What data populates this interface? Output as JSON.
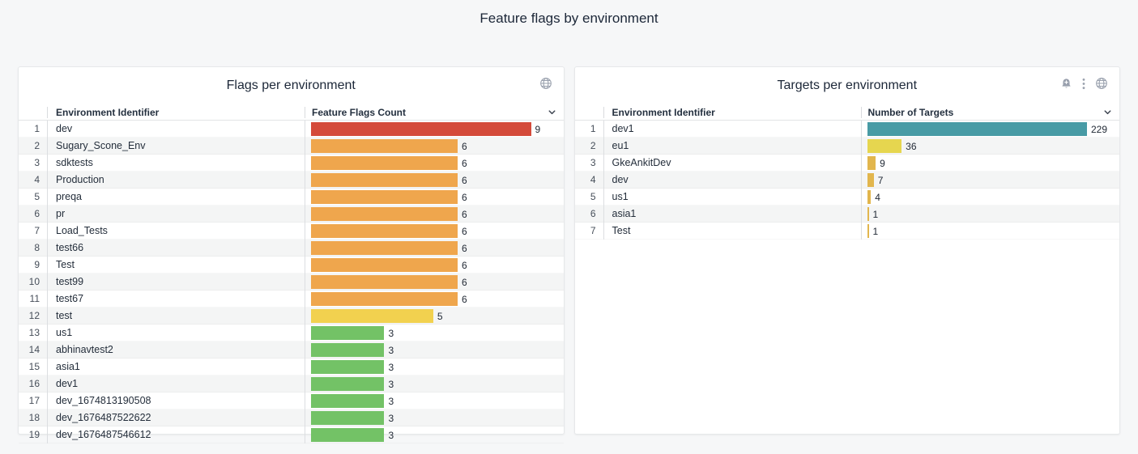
{
  "page": {
    "title": "Feature flags by environment",
    "background": "#f6f7f8"
  },
  "colors": {
    "red": "#d44a3a",
    "orange": "#efa64d",
    "yellow": "#f2d14f",
    "green": "#73c266",
    "teal": "#489ba5",
    "lemon": "#e6d64f",
    "gold": "#e2b64d"
  },
  "panels": [
    {
      "title": "Flags per environment",
      "header_icons": [
        "globe-icon"
      ],
      "columns": {
        "name": "Environment Identifier",
        "value": "Feature Flags Count"
      },
      "header_chevron": "chevron-down-icon",
      "max_value": 9,
      "rows": [
        {
          "index": 1,
          "name": "dev",
          "value": 9,
          "color": "red"
        },
        {
          "index": 2,
          "name": "Sugary_Scone_Env",
          "value": 6,
          "color": "orange"
        },
        {
          "index": 3,
          "name": "sdktests",
          "value": 6,
          "color": "orange"
        },
        {
          "index": 4,
          "name": "Production",
          "value": 6,
          "color": "orange"
        },
        {
          "index": 5,
          "name": "preqa",
          "value": 6,
          "color": "orange"
        },
        {
          "index": 6,
          "name": "pr",
          "value": 6,
          "color": "orange"
        },
        {
          "index": 7,
          "name": "Load_Tests",
          "value": 6,
          "color": "orange"
        },
        {
          "index": 8,
          "name": "test66",
          "value": 6,
          "color": "orange"
        },
        {
          "index": 9,
          "name": "Test",
          "value": 6,
          "color": "orange"
        },
        {
          "index": 10,
          "name": "test99",
          "value": 6,
          "color": "orange"
        },
        {
          "index": 11,
          "name": "test67",
          "value": 6,
          "color": "orange"
        },
        {
          "index": 12,
          "name": "test",
          "value": 5,
          "color": "yellow"
        },
        {
          "index": 13,
          "name": "us1",
          "value": 3,
          "color": "green"
        },
        {
          "index": 14,
          "name": "abhinavtest2",
          "value": 3,
          "color": "green"
        },
        {
          "index": 15,
          "name": "asia1",
          "value": 3,
          "color": "green"
        },
        {
          "index": 16,
          "name": "dev1",
          "value": 3,
          "color": "green"
        },
        {
          "index": 17,
          "name": "dev_1674813190508",
          "value": 3,
          "color": "green"
        },
        {
          "index": 18,
          "name": "dev_1676487522622",
          "value": 3,
          "color": "green"
        },
        {
          "index": 19,
          "name": "dev_1676487546612",
          "value": 3,
          "color": "green"
        }
      ]
    },
    {
      "title": "Targets per environment",
      "header_icons": [
        "bell-plus-icon",
        "kebab-menu-icon",
        "globe-icon"
      ],
      "columns": {
        "name": "Environment Identifier",
        "value": "Number of Targets"
      },
      "header_chevron": "chevron-down-icon",
      "max_value": 229,
      "rows": [
        {
          "index": 1,
          "name": "dev1",
          "value": 229,
          "color": "teal"
        },
        {
          "index": 2,
          "name": "eu1",
          "value": 36,
          "color": "lemon"
        },
        {
          "index": 3,
          "name": "GkeAnkitDev",
          "value": 9,
          "color": "gold"
        },
        {
          "index": 4,
          "name": "dev",
          "value": 7,
          "color": "gold"
        },
        {
          "index": 5,
          "name": "us1",
          "value": 4,
          "color": "gold"
        },
        {
          "index": 6,
          "name": "asia1",
          "value": 1,
          "color": "gold"
        },
        {
          "index": 7,
          "name": "Test",
          "value": 1,
          "color": "gold"
        }
      ]
    }
  ],
  "chart_data": [
    {
      "type": "bar",
      "title": "Flags per environment",
      "orientation": "horizontal",
      "categories": [
        "dev",
        "Sugary_Scone_Env",
        "sdktests",
        "Production",
        "preqa",
        "pr",
        "Load_Tests",
        "test66",
        "Test",
        "test99",
        "test67",
        "test",
        "us1",
        "abhinavtest2",
        "asia1",
        "dev1",
        "dev_1674813190508",
        "dev_1676487522622",
        "dev_1676487546612"
      ],
      "values": [
        9,
        6,
        6,
        6,
        6,
        6,
        6,
        6,
        6,
        6,
        6,
        5,
        3,
        3,
        3,
        3,
        3,
        3,
        3
      ],
      "xlabel": "Feature Flags Count",
      "ylabel": "Environment Identifier",
      "xlim": [
        0,
        9
      ]
    },
    {
      "type": "bar",
      "title": "Targets per environment",
      "orientation": "horizontal",
      "categories": [
        "dev1",
        "eu1",
        "GkeAnkitDev",
        "dev",
        "us1",
        "asia1",
        "Test"
      ],
      "values": [
        229,
        36,
        9,
        7,
        4,
        1,
        1
      ],
      "xlabel": "Number of Targets",
      "ylabel": "Environment Identifier",
      "xlim": [
        0,
        229
      ]
    }
  ]
}
